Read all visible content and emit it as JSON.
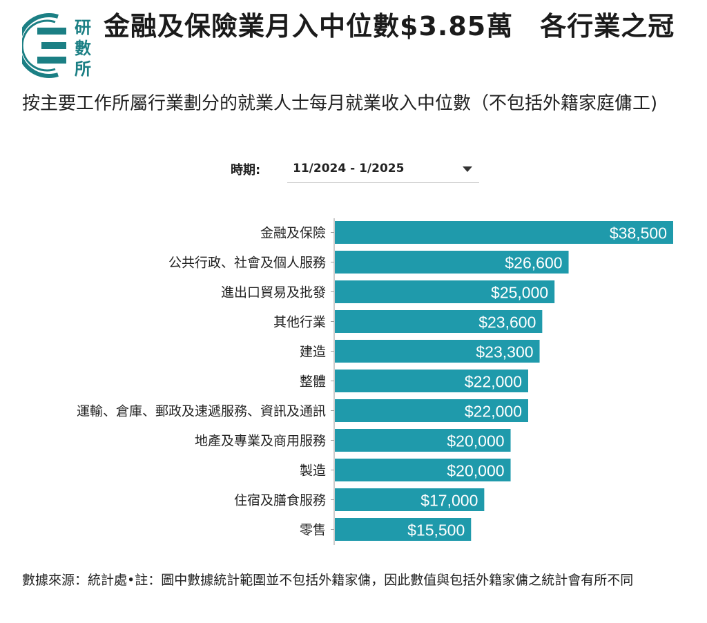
{
  "header": {
    "logo_text": [
      "研",
      "數",
      "所"
    ],
    "title": "金融及保險業月入中位數$3.85萬　各行業之冠",
    "subtitle": "按主要工作所屬行業劃分的就業人士每月就業收入中位數（不包括外籍家庭傭工)"
  },
  "filter": {
    "label": "時期:",
    "value": "11/2024 - 1/2025"
  },
  "footer": {
    "source": "數據來源：統計處•註：圖中數據統計範圍並不包括外籍家傭，因此數值與包括外籍家傭之統計會有所不同"
  },
  "colors": {
    "bar": "#1f9aab",
    "logo": "#1b7f84"
  },
  "chart_data": {
    "type": "bar",
    "orientation": "horizontal",
    "categories": [
      "金融及保險",
      "公共行政、社會及個人服務",
      "進出口貿易及批發",
      "其他行業",
      "建造",
      "整體",
      "運輸、倉庫、郵政及速遞服務、資訊及通訊",
      "地產及專業及商用服務",
      "製造",
      "住宿及膳食服務",
      "零售"
    ],
    "values": [
      38500,
      26600,
      25000,
      23600,
      23300,
      22000,
      22000,
      20000,
      20000,
      17000,
      15500
    ],
    "data_labels": [
      "$38,500",
      "$26,600",
      "$25,000",
      "$23,600",
      "$23,300",
      "$22,000",
      "$22,000",
      "$20,000",
      "$20,000",
      "$17,000",
      "$15,500"
    ],
    "xlim": [
      0,
      38500
    ],
    "grid": false
  }
}
